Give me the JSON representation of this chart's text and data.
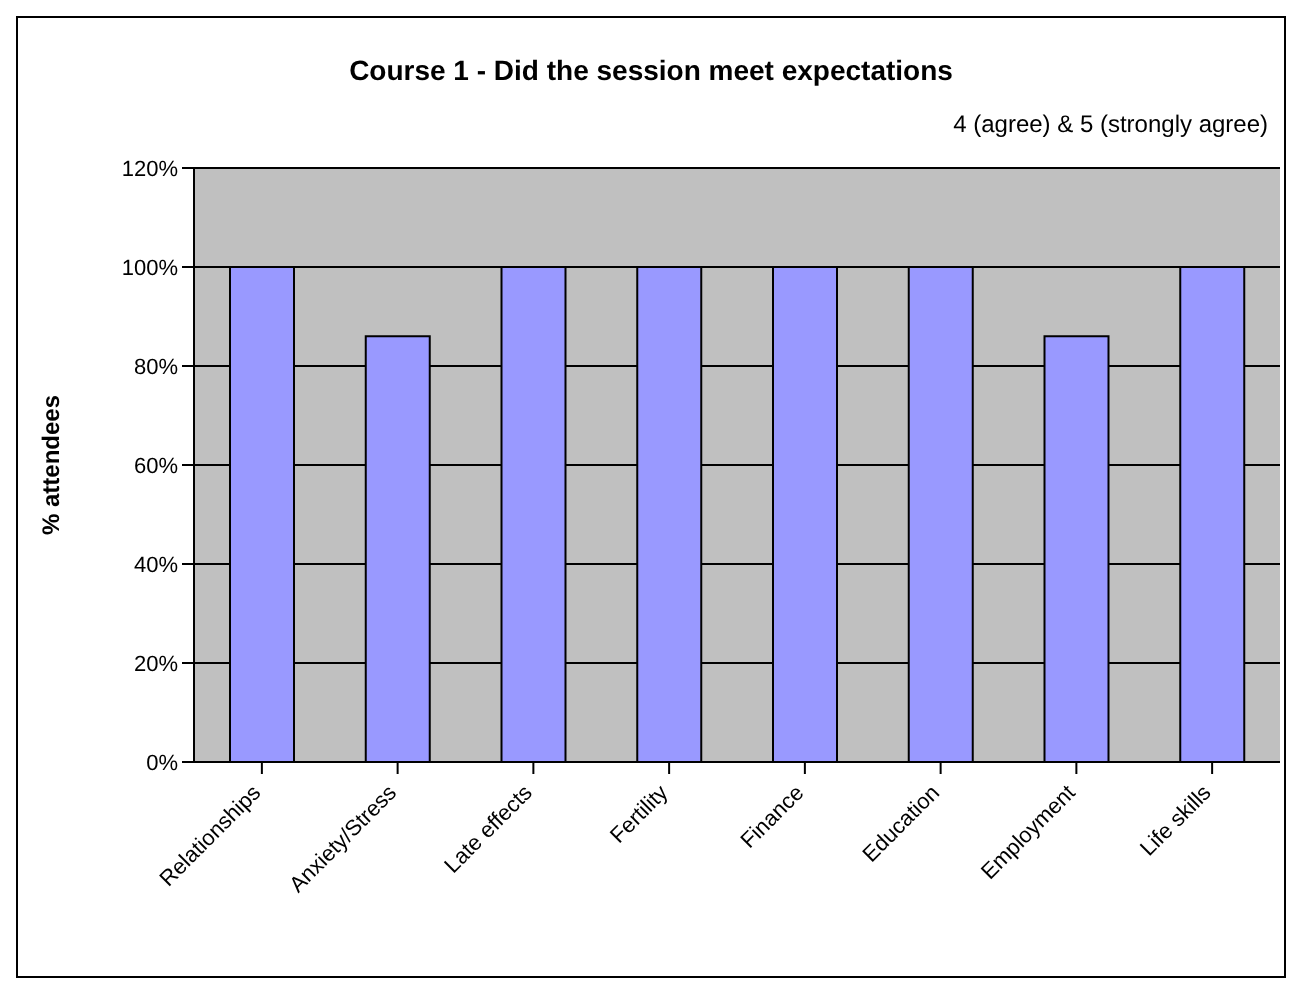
{
  "chart_data": {
    "type": "bar",
    "title": "Course 1 - Did the session meet expectations",
    "subtitle": "4 (agree) & 5 (strongly agree)",
    "ylabel": "% attendees",
    "categories": [
      "Relationships",
      "Anxiety/Stress",
      "Late effects",
      "Fertility",
      "Finance",
      "Education",
      "Employment",
      "Life skills"
    ],
    "values": [
      100,
      86,
      100,
      100,
      100,
      100,
      86,
      100
    ],
    "color": "#9999ff",
    "ylim": [
      0,
      120
    ],
    "yticks": [
      {
        "value": 0,
        "label": "0%"
      },
      {
        "value": 20,
        "label": "20%"
      },
      {
        "value": 40,
        "label": "40%"
      },
      {
        "value": 60,
        "label": "60%"
      },
      {
        "value": 80,
        "label": "80%"
      },
      {
        "value": 100,
        "label": "100%"
      },
      {
        "value": 120,
        "label": "120%"
      }
    ],
    "grid": "y",
    "legend": false
  }
}
